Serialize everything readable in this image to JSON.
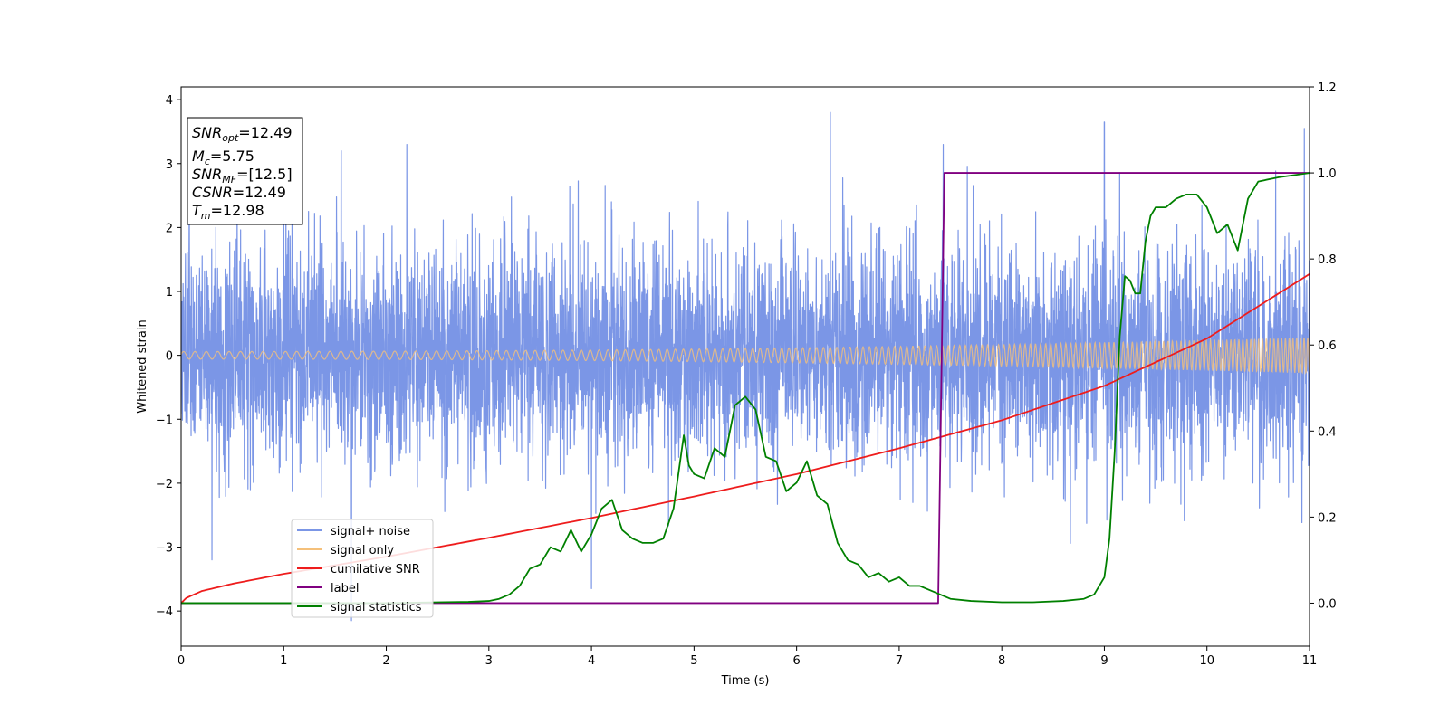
{
  "chart_data": {
    "type": "line",
    "xlabel": "Time (s)",
    "ylabel": "Whitened strain",
    "xlim": [
      0,
      11
    ],
    "ylim": [
      -4.55,
      4.2
    ],
    "y2lim": [
      -0.1,
      1.2
    ],
    "x_ticks": [
      0,
      1,
      2,
      3,
      4,
      5,
      6,
      7,
      8,
      9,
      10,
      11
    ],
    "x_tick_labels": [
      "0",
      "1",
      "2",
      "3",
      "4",
      "5",
      "6",
      "7",
      "8",
      "9",
      "10",
      "11"
    ],
    "y_ticks": [
      -4,
      -3,
      -2,
      -1,
      0,
      1,
      2,
      3,
      4
    ],
    "y_tick_labels": [
      "−4",
      "−3",
      "−2",
      "−1",
      "0",
      "1",
      "2",
      "3",
      "4"
    ],
    "y2_ticks": [
      0.0,
      0.2,
      0.4,
      0.6,
      0.8,
      1.0,
      1.2
    ],
    "y2_tick_labels": [
      "0.0",
      "0.2",
      "0.4",
      "0.6",
      "0.8",
      "1.0",
      "1.2"
    ],
    "legend_position": "lower-left",
    "grid": false,
    "info_box": {
      "snr_opt": {
        "sym": "SNR",
        "sub": "opt",
        "value": "=12.49"
      },
      "mc": {
        "sym": "M",
        "sub": "c",
        "value": "=5.75"
      },
      "snr_mf": {
        "sym": "SNR",
        "sub": "MF",
        "value": "=[12.5]"
      },
      "csnr": {
        "sym": "CSNR",
        "value": "=12.49"
      },
      "tm": {
        "sym": "T",
        "sub": "m",
        "value": "=12.98"
      }
    },
    "series": [
      {
        "name": "signal+ noise",
        "color": "#7b96e6",
        "axis": "left",
        "kind": "noise",
        "envelope_sigma": 0.85,
        "notable_spikes": [
          [
            0.3,
            -3.2
          ],
          [
            1.0,
            3.05
          ],
          [
            1.56,
            3.2
          ],
          [
            1.66,
            -4.15
          ],
          [
            2.2,
            3.3
          ],
          [
            4.0,
            -3.65
          ],
          [
            6.33,
            3.8
          ],
          [
            7.43,
            3.3
          ],
          [
            9.0,
            3.65
          ],
          [
            10.95,
            3.55
          ]
        ]
      },
      {
        "name": "signal only",
        "color": "#f5c07a",
        "axis": "left",
        "kind": "chirp",
        "amp_start": 0.06,
        "amp_end": 0.28,
        "freq_start": 9,
        "freq_end": 28
      },
      {
        "name": "cumilative SNR",
        "color": "#ee1c1c",
        "axis": "right",
        "x": [
          0,
          0.05,
          0.2,
          0.5,
          1,
          1.5,
          2,
          3,
          4,
          5,
          6,
          7,
          8,
          9,
          10,
          11
        ],
        "y": [
          0,
          0.012,
          0.028,
          0.045,
          0.068,
          0.088,
          0.108,
          0.152,
          0.198,
          0.248,
          0.3,
          0.36,
          0.425,
          0.505,
          0.615,
          0.765
        ]
      },
      {
        "name": "label",
        "color": "#800080",
        "axis": "right",
        "x": [
          0,
          7.38,
          7.44,
          11
        ],
        "y": [
          0,
          0,
          1,
          1
        ]
      },
      {
        "name": "signal statistics",
        "color": "#008000",
        "axis": "right",
        "x": [
          0,
          1,
          2,
          2.5,
          2.8,
          3.0,
          3.1,
          3.2,
          3.3,
          3.4,
          3.5,
          3.6,
          3.7,
          3.8,
          3.9,
          4.0,
          4.1,
          4.2,
          4.3,
          4.4,
          4.5,
          4.6,
          4.7,
          4.8,
          4.9,
          4.95,
          5.0,
          5.1,
          5.2,
          5.3,
          5.4,
          5.5,
          5.6,
          5.7,
          5.8,
          5.9,
          6.0,
          6.1,
          6.15,
          6.2,
          6.3,
          6.4,
          6.5,
          6.6,
          6.7,
          6.8,
          6.9,
          7.0,
          7.1,
          7.2,
          7.3,
          7.5,
          7.7,
          8.0,
          8.3,
          8.6,
          8.8,
          8.9,
          9.0,
          9.05,
          9.1,
          9.15,
          9.2,
          9.25,
          9.3,
          9.35,
          9.4,
          9.45,
          9.5,
          9.6,
          9.7,
          9.8,
          9.9,
          10.0,
          10.1,
          10.2,
          10.3,
          10.4,
          10.5,
          10.7,
          11.0
        ],
        "y": [
          0.0,
          0.0,
          0.0,
          0.002,
          0.003,
          0.005,
          0.01,
          0.02,
          0.04,
          0.08,
          0.09,
          0.13,
          0.12,
          0.17,
          0.12,
          0.16,
          0.22,
          0.24,
          0.17,
          0.15,
          0.14,
          0.14,
          0.15,
          0.22,
          0.39,
          0.32,
          0.3,
          0.29,
          0.36,
          0.34,
          0.46,
          0.48,
          0.45,
          0.34,
          0.33,
          0.26,
          0.28,
          0.33,
          0.29,
          0.25,
          0.23,
          0.14,
          0.1,
          0.09,
          0.06,
          0.07,
          0.05,
          0.06,
          0.04,
          0.04,
          0.03,
          0.01,
          0.005,
          0.002,
          0.002,
          0.005,
          0.01,
          0.02,
          0.06,
          0.15,
          0.35,
          0.62,
          0.76,
          0.75,
          0.72,
          0.72,
          0.84,
          0.9,
          0.92,
          0.92,
          0.94,
          0.95,
          0.95,
          0.92,
          0.86,
          0.88,
          0.82,
          0.94,
          0.98,
          0.99,
          1.0
        ]
      }
    ]
  }
}
